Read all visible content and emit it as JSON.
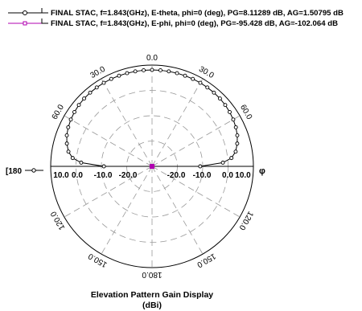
{
  "chart_data": {
    "type": "polar",
    "title": "Elevation Pattern Gain Display",
    "subtitle": "(dBi)",
    "radial_range": [
      -30,
      10
    ],
    "radial_step": 10,
    "angle_step_deg": 30,
    "radial_tick_labels_left": [
      "10.0",
      "0.0",
      "-10.0",
      "-20.0"
    ],
    "radial_tick_labels_right": [
      "-20.0",
      "-10.0",
      "0.0",
      "10.0"
    ],
    "angle_labels": [
      {
        "angle": 0,
        "text": "0.0"
      },
      {
        "angle": 30,
        "text": "30.0"
      },
      {
        "angle": 60,
        "text": "60.0"
      },
      {
        "angle": 120,
        "text": "120.0"
      },
      {
        "angle": 150,
        "text": "150.0"
      },
      {
        "angle": 180,
        "text": "180.0"
      },
      {
        "angle": -150,
        "text": "150.0"
      },
      {
        "angle": -120,
        "text": "120.0"
      },
      {
        "angle": -60,
        "text": "60.0"
      },
      {
        "angle": -30,
        "text": "30.0"
      }
    ],
    "left_axis_label": "[180",
    "right_axis_label": "φ",
    "legend_placement": "top-left",
    "series": [
      {
        "name": "FINAL STAC, f=1.843(GHz), E-theta, phi=0 (deg), PG=8.11289 dB, AG=1.50795 dB",
        "color": "#000000",
        "marker": "circle",
        "points": [
          [
            -90,
            -11
          ],
          [
            -87,
            -2
          ],
          [
            -84,
            1.5
          ],
          [
            -80,
            3.5
          ],
          [
            -75,
            4.8
          ],
          [
            -70,
            5.8
          ],
          [
            -65,
            6.5
          ],
          [
            -60,
            7.0
          ],
          [
            -55,
            7.4
          ],
          [
            -50,
            7.7
          ],
          [
            -45,
            7.9
          ],
          [
            -40,
            8.0
          ],
          [
            -35,
            8.05
          ],
          [
            -30,
            8.1
          ],
          [
            -25,
            8.1
          ],
          [
            -20,
            8.1
          ],
          [
            -15,
            8.1
          ],
          [
            -10,
            8.1
          ],
          [
            -5,
            8.1
          ],
          [
            0,
            8.1
          ],
          [
            5,
            8.1
          ],
          [
            10,
            8.1
          ],
          [
            15,
            8.1
          ],
          [
            20,
            8.1
          ],
          [
            25,
            8.1
          ],
          [
            30,
            8.1
          ],
          [
            35,
            8.05
          ],
          [
            40,
            8.0
          ],
          [
            45,
            7.9
          ],
          [
            50,
            7.7
          ],
          [
            55,
            7.4
          ],
          [
            60,
            7.0
          ],
          [
            65,
            6.5
          ],
          [
            70,
            5.8
          ],
          [
            75,
            4.8
          ],
          [
            80,
            3.5
          ],
          [
            84,
            1.5
          ],
          [
            87,
            -2
          ],
          [
            90,
            -11
          ]
        ],
        "connect_points": [
          [
            -90,
            -11
          ],
          [
            -180,
            -30
          ],
          [
            90,
            -11
          ]
        ]
      },
      {
        "name": "FINAL STAC, f=1.843(GHz), E-phi, phi=0 (deg), PG=-95.428 dB, AG=-102.064 dB",
        "color": "#b000b0",
        "marker": "square",
        "points": [
          [
            0,
            -30
          ]
        ]
      }
    ]
  }
}
